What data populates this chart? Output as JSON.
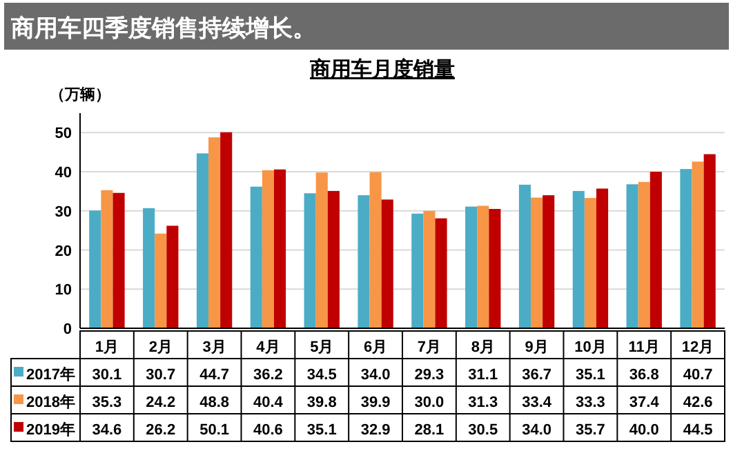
{
  "chart_data": {
    "type": "bar",
    "title": "商用车四季度销售持续增长。",
    "subtitle": "商用车月度销量",
    "ylabel": "（万辆）",
    "categories": [
      "1月",
      "2月",
      "3月",
      "4月",
      "5月",
      "6月",
      "7月",
      "8月",
      "9月",
      "10月",
      "11月",
      "12月"
    ],
    "series": [
      {
        "name": "2017年",
        "color": "#4bacc6",
        "values": [
          30.1,
          30.7,
          44.7,
          36.2,
          34.5,
          34.0,
          29.3,
          31.1,
          36.7,
          35.1,
          36.8,
          40.7
        ],
        "value_labels": [
          "30.1",
          "30.7",
          "44.7",
          "36.2",
          "34.5",
          "34.0",
          "29.3",
          "31.1",
          "36.7",
          "35.1",
          "36.8",
          "40.7"
        ]
      },
      {
        "name": "2018年",
        "color": "#f79646",
        "values": [
          35.3,
          24.2,
          48.8,
          40.4,
          39.8,
          39.9,
          30.0,
          31.3,
          33.4,
          33.3,
          37.4,
          42.6
        ],
        "value_labels": [
          "35.3",
          "24.2",
          "48.8",
          "40.4",
          "39.8",
          "39.9",
          "30.0",
          "31.3",
          "33.4",
          "33.3",
          "37.4",
          "42.6"
        ]
      },
      {
        "name": "2019年",
        "color": "#c00000",
        "values": [
          34.6,
          26.2,
          50.1,
          40.6,
          35.1,
          32.9,
          28.1,
          30.5,
          34.0,
          35.7,
          40.0,
          44.5
        ],
        "value_labels": [
          "34.6",
          "26.2",
          "50.1",
          "40.6",
          "35.1",
          "32.9",
          "28.1",
          "30.5",
          "34.0",
          "35.7",
          "40.0",
          "44.5"
        ]
      }
    ],
    "ylim": [
      0,
      55
    ],
    "yticks": [
      0,
      10,
      20,
      30,
      40,
      50
    ],
    "grid": "y",
    "legend": "bottom left"
  }
}
